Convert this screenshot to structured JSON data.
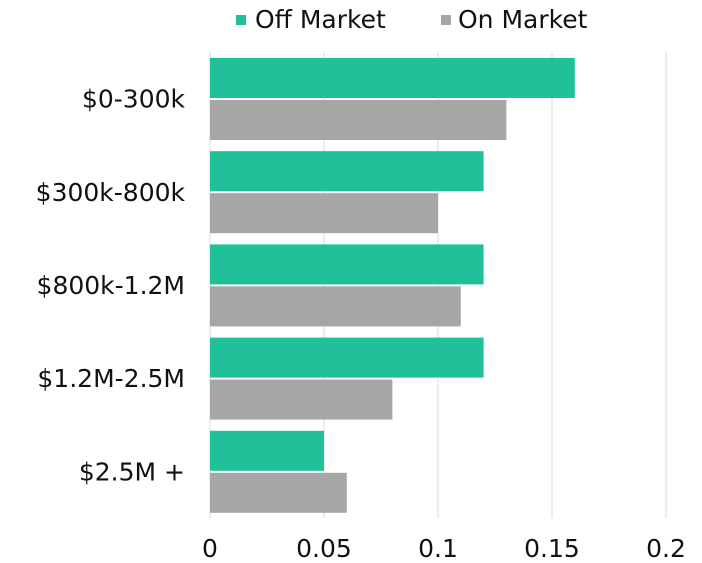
{
  "chart_data": {
    "type": "bar",
    "orientation": "horizontal",
    "categories": [
      "$0-300k",
      "$300k-800k",
      "$800k-1.2M",
      "$1.2M-2.5M",
      "$2.5M +"
    ],
    "series": [
      {
        "name": "Off Market",
        "color": "#20c09a",
        "values": [
          0.16,
          0.12,
          0.12,
          0.12,
          0.05
        ]
      },
      {
        "name": "On Market",
        "color": "#a6a6a6",
        "values": [
          0.13,
          0.1,
          0.11,
          0.08,
          0.06
        ]
      }
    ],
    "xlim": [
      0,
      0.2
    ],
    "xticks": [
      0,
      0.05,
      0.1,
      0.15,
      0.2
    ],
    "grid": true,
    "legend": "top"
  }
}
